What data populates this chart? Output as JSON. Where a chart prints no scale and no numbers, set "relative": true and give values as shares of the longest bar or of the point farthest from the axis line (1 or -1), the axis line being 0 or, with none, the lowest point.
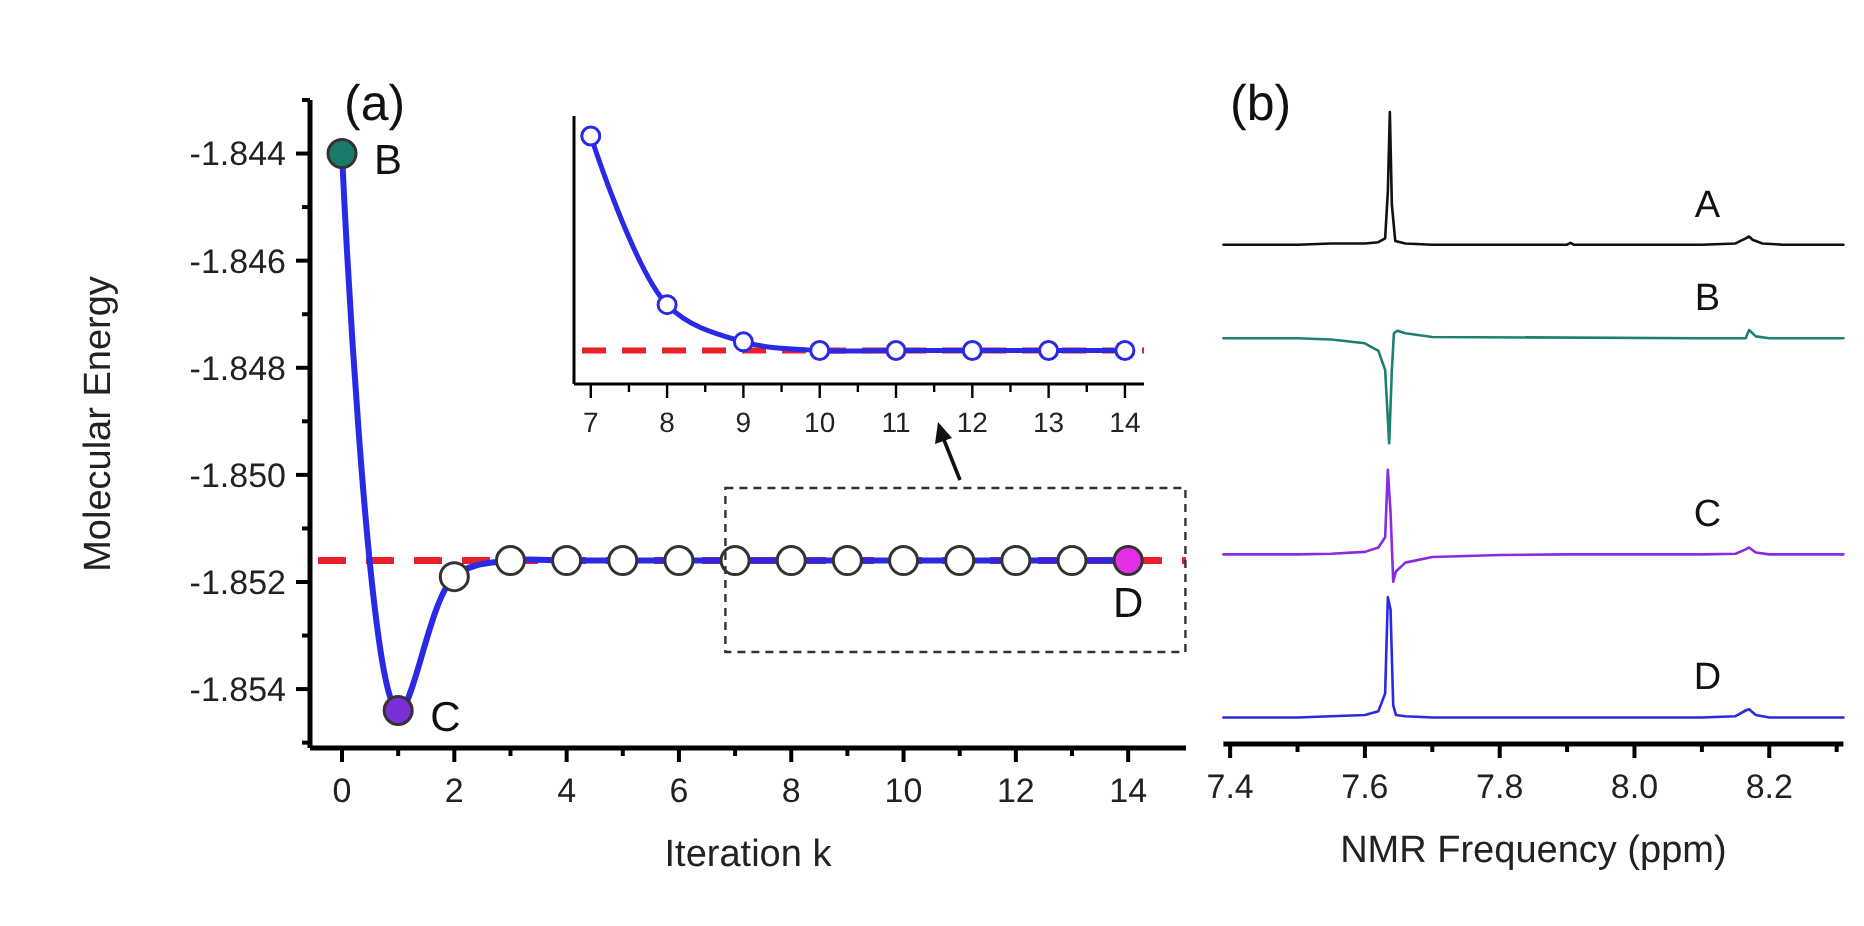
{
  "chart_data": [
    {
      "type": "line",
      "xlabel": "Iteration k",
      "ylabel": "Molecular Energy",
      "x": [
        0,
        1,
        2,
        3,
        4,
        5,
        6,
        7,
        8,
        9,
        10,
        11,
        12,
        13,
        14
      ],
      "series": [
        {
          "color": "#2a2ae6",
          "colors": [
            "#1b7a6a",
            "#7b2fd6",
            "#ffffff",
            "#ffffff",
            "#ffffff",
            "#ffffff",
            "#ffffff",
            "#ffffff",
            "#ffffff",
            "#ffffff",
            "#ffffff",
            "#ffffff",
            "#ffffff",
            "#ffffff",
            "#e62ee6"
          ],
          "values": [
            -1.844,
            -1.8544,
            -1.8519,
            -1.8516,
            -1.8516,
            -1.8516,
            -1.8516,
            -1.8516,
            -1.8516,
            -1.8516,
            -1.8516,
            -1.8516,
            -1.8516,
            -1.8516,
            -1.8516
          ]
        }
      ],
      "xlim": [
        -0.57,
        15.03
      ],
      "ylim": [
        -1.8551,
        -1.843
      ],
      "xticks": [
        0,
        {
          "value": 1,
          "label": null
        },
        2,
        {
          "value": 3,
          "label": null
        },
        4,
        {
          "value": 5,
          "label": null
        },
        6,
        {
          "value": 7,
          "label": null
        },
        8,
        {
          "value": 9,
          "label": null
        },
        10,
        {
          "value": 11,
          "label": null
        },
        12,
        {
          "value": 13,
          "label": null
        },
        14
      ],
      "yticks": [
        {
          "value": -1.855,
          "label": null
        },
        -1.854,
        {
          "value": -1.853,
          "label": null
        },
        -1.852,
        {
          "value": -1.851,
          "label": null
        },
        {
          "value": -1.85,
          "label": "-1.850"
        },
        {
          "value": -1.849,
          "label": null
        },
        -1.848,
        {
          "value": -1.847,
          "label": null
        },
        -1.846,
        {
          "value": -1.845,
          "label": null
        },
        -1.844,
        {
          "value": -1.843,
          "label": null
        }
      ],
      "ref_lines": [
        {
          "axis": "y",
          "value": -1.8516,
          "color": "#e8202a",
          "line_style": "dashed"
        }
      ],
      "marker": "circle",
      "annotations": [
        "(a)",
        {
          "text": "B",
          "x": 0,
          "y": -1.844
        },
        {
          "text": "C",
          "x": 1,
          "y": -1.8544
        },
        {
          "text": "D",
          "x": 14,
          "y": -1.8516
        }
      ]
    },
    {
      "type": "line",
      "relative": true,
      "x": [
        7,
        8,
        9,
        10,
        11,
        12,
        13,
        14
      ],
      "series": [
        {
          "color": "#2a2ae6",
          "values": [
            1,
            0.32,
            0.17,
            0.135,
            0.135,
            0.135,
            0.135,
            0.135
          ]
        }
      ],
      "xlim": [
        6.78,
        14.25
      ],
      "xticks": [
        7,
        {
          "value": 7.5,
          "label": null
        },
        8,
        {
          "value": 8.5,
          "label": null
        },
        9,
        {
          "value": 9.5,
          "label": null
        },
        10,
        {
          "value": 10.5,
          "label": null
        },
        11,
        {
          "value": 11.5,
          "label": null
        },
        12,
        {
          "value": 12.5,
          "label": null
        },
        13,
        {
          "value": 13.5,
          "label": null
        },
        14
      ],
      "ref_lines": [
        {
          "axis": "y",
          "value": 0.135,
          "color": "#e8202a",
          "line_style": "dashed"
        }
      ],
      "marker": "circle"
    },
    {
      "type": "line",
      "relative": true,
      "xlim": [
        7.39,
        8.31
      ],
      "xlabel": "NMR Frequency (ppm)",
      "annotations": [
        "(b)"
      ],
      "xticks": [
        7.4,
        {
          "value": 7.5,
          "label": null
        },
        7.6,
        {
          "value": 7.7,
          "label": null
        },
        7.8,
        {
          "value": 7.9,
          "label": null
        },
        {
          "value": 8,
          "label": "8.0"
        },
        {
          "value": 8.1,
          "label": null
        },
        8.2,
        {
          "value": 8.3,
          "label": null
        }
      ],
      "series": [
        {
          "name": "A",
          "color": "#111111",
          "x": [
            7.39,
            7.5,
            7.55,
            7.6,
            7.62,
            7.63,
            7.634,
            7.637,
            7.64,
            7.645,
            7.66,
            7.7,
            7.9,
            7.905,
            7.91,
            8.1,
            8.15,
            8.165,
            8.17,
            8.175,
            8.19,
            8.22,
            8.31
          ],
          "values": [
            0.79,
            0.79,
            0.792,
            0.792,
            0.794,
            0.8,
            0.874,
            1,
            0.853,
            0.796,
            0.792,
            0.79,
            0.79,
            0.793,
            0.79,
            0.79,
            0.792,
            0.8,
            0.803,
            0.798,
            0.792,
            0.79,
            0.79
          ]
        },
        {
          "name": "B",
          "color": "#1f8070",
          "x": [
            7.39,
            7.5,
            7.55,
            7.6,
            7.62,
            7.63,
            7.636,
            7.64,
            7.643,
            7.648,
            7.66,
            7.7,
            8.1,
            8.165,
            8.17,
            8.18,
            8.2,
            8.31
          ],
          "values": [
            0.642,
            0.642,
            0.64,
            0.634,
            0.622,
            0.592,
            0.476,
            0.592,
            0.65,
            0.654,
            0.65,
            0.644,
            0.642,
            0.642,
            0.655,
            0.645,
            0.642,
            0.642
          ]
        },
        {
          "name": "C",
          "color": "#8a2be2",
          "x": [
            7.39,
            7.5,
            7.55,
            7.6,
            7.62,
            7.63,
            7.634,
            7.638,
            7.642,
            7.646,
            7.66,
            7.7,
            7.8,
            7.9,
            8.1,
            8.15,
            8.165,
            8.17,
            8.18,
            8.2,
            8.31
          ],
          "values": [
            0.3,
            0.3,
            0.301,
            0.304,
            0.311,
            0.327,
            0.434,
            0.367,
            0.257,
            0.273,
            0.287,
            0.296,
            0.299,
            0.3,
            0.3,
            0.301,
            0.308,
            0.311,
            0.303,
            0.3,
            0.3
          ]
        },
        {
          "name": "D",
          "color": "#2a2ae0",
          "x": [
            7.39,
            7.5,
            7.55,
            7.6,
            7.62,
            7.63,
            7.634,
            7.638,
            7.642,
            7.646,
            7.66,
            7.7,
            7.9,
            8.1,
            8.15,
            8.165,
            8.17,
            8.18,
            8.2,
            8.31
          ],
          "values": [
            0.042,
            0.042,
            0.044,
            0.046,
            0.052,
            0.08,
            0.232,
            0.213,
            0.061,
            0.046,
            0.044,
            0.042,
            0.042,
            0.042,
            0.044,
            0.053,
            0.055,
            0.046,
            0.042,
            0.042
          ]
        }
      ]
    }
  ]
}
